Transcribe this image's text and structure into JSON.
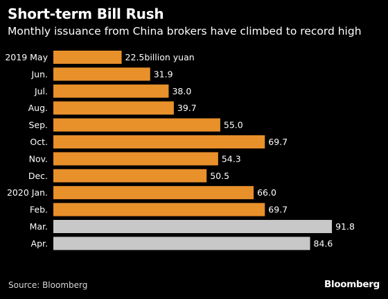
{
  "title": "Short-term Bill Rush",
  "subtitle": "Monthly issuance from China brokers have climbed to record high",
  "source": "Source: Bloomberg",
  "brand": "Bloomberg",
  "colors": {
    "background": "#000000",
    "issued": "#e8902a",
    "highlight": "#c8c8c8",
    "text": "#ffffff"
  },
  "chart_data": {
    "type": "bar",
    "orientation": "horizontal",
    "categories": [
      "2019 May",
      "Jun.",
      "Jul.",
      "Aug.",
      "Sep.",
      "Oct.",
      "Nov.",
      "Dec.",
      "2020 Jan.",
      "Feb.",
      "Mar.",
      "Apr."
    ],
    "values": [
      22.5,
      31.9,
      38.0,
      39.7,
      55.0,
      69.7,
      54.3,
      50.5,
      66.0,
      69.7,
      91.8,
      84.6
    ],
    "value_labels": [
      "22.5billion yuan",
      "31.9",
      "38.0",
      "39.7",
      "55.0",
      "69.7",
      "54.3",
      "50.5",
      "66.0",
      "69.7",
      "91.8",
      "84.6"
    ],
    "bar_colors": [
      "#e8902a",
      "#e8902a",
      "#e8902a",
      "#e8902a",
      "#e8902a",
      "#e8902a",
      "#e8902a",
      "#e8902a",
      "#e8902a",
      "#e8902a",
      "#c8c8c8",
      "#c8c8c8"
    ],
    "xlim": [
      0,
      100
    ],
    "grid": false,
    "legend": "none"
  }
}
